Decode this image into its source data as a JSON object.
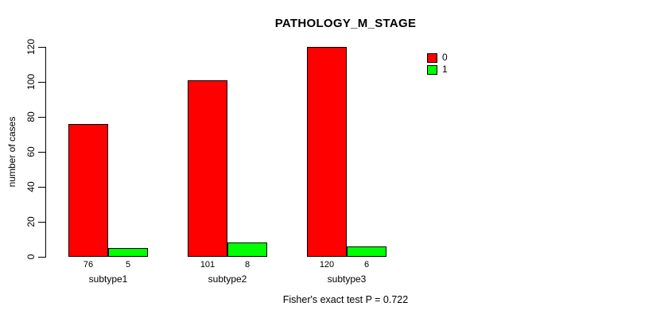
{
  "chart_data": {
    "type": "bar",
    "title": "PATHOLOGY_M_STAGE",
    "xlabel": "",
    "ylabel": "number of cases",
    "categories": [
      "subtype1",
      "subtype2",
      "subtype3"
    ],
    "series": [
      {
        "name": "0",
        "color": "#ff0000",
        "values": [
          76,
          101,
          120
        ]
      },
      {
        "name": "1",
        "color": "#00ff00",
        "values": [
          5,
          8,
          6
        ]
      }
    ],
    "ylim": [
      0,
      120
    ],
    "yticks": [
      0,
      20,
      40,
      60,
      80,
      100,
      120
    ],
    "grid": false,
    "bar_border_color": "#000000",
    "legend": {
      "position": "top-right",
      "entries": [
        {
          "label": "0",
          "color": "#ff0000"
        },
        {
          "label": "1",
          "color": "#00ff00"
        }
      ]
    },
    "annotation": "Fisher's exact test P = 0.722"
  }
}
